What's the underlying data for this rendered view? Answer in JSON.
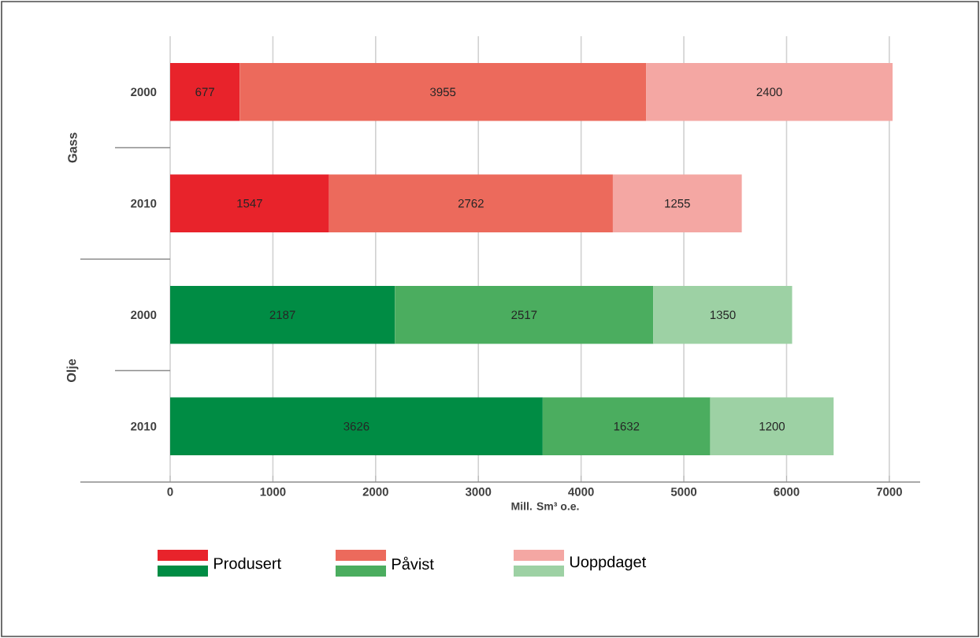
{
  "chart_data": {
    "type": "bar",
    "orientation": "horizontal",
    "stacked": true,
    "categories": [
      "2000",
      "2010",
      "2000",
      "2010"
    ],
    "series": [
      {
        "name": "Produsert",
        "colors": [
          "#e8232b",
          "#e8232b",
          "#008c44",
          "#008c44"
        ],
        "values": [
          677,
          1547,
          2187,
          3626
        ]
      },
      {
        "name": "Påvist",
        "colors": [
          "#ec6a5c",
          "#ec6a5c",
          "#4bad5f",
          "#4bad5f"
        ],
        "values": [
          3955,
          2762,
          2517,
          1632
        ]
      },
      {
        "name": "Uoppdaget",
        "colors": [
          "#f4a7a3",
          "#f4a7a3",
          "#9dd1a4",
          "#9dd1a4"
        ],
        "values": [
          2400,
          1255,
          1350,
          1200
        ]
      }
    ],
    "xlabel": "Mill. Sm³ o.e.",
    "annotations": [
      "Gass",
      "Olje"
    ],
    "xlim": [
      0,
      7300
    ],
    "xticks": [
      0,
      1000,
      2000,
      3000,
      4000,
      5000,
      6000,
      7000
    ],
    "grid": "x",
    "legend": "bottom",
    "data_labels": true
  }
}
